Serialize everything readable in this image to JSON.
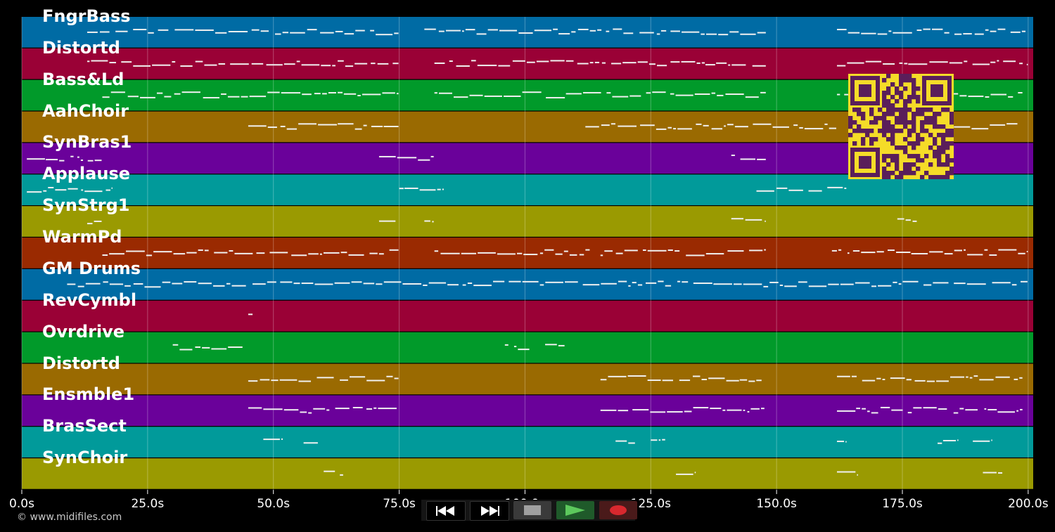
{
  "tracks": [
    {
      "name": "FngrBass",
      "color": "#006ba4"
    },
    {
      "name": "Distortd",
      "color": "#9a0136"
    },
    {
      "name": "Bass&Ld",
      "color": "#019a2a"
    },
    {
      "name": "AahChoir",
      "color": "#9a6a01"
    },
    {
      "name": "SynBras1",
      "color": "#6a019a"
    },
    {
      "name": "Applause",
      "color": "#019a9a"
    },
    {
      "name": "SynStrg1",
      "color": "#9a9a01"
    },
    {
      "name": "WarmPd",
      "color": "#9a2a01"
    },
    {
      "name": "GM Drums",
      "color": "#006ba4"
    },
    {
      "name": "RevCymbl",
      "color": "#9a0136"
    },
    {
      "name": "Ovrdrive",
      "color": "#019a2a"
    },
    {
      "name": "Distortd",
      "color": "#9a6a01"
    },
    {
      "name": "Ensmble1",
      "color": "#6a019a"
    },
    {
      "name": "BrasSect",
      "color": "#019a9a"
    },
    {
      "name": "SynChoir",
      "color": "#9a9a01"
    }
  ],
  "timeline": {
    "max_seconds": 201,
    "ticks": [
      "0.0s",
      "25.0s",
      "50.0s",
      "75.0s",
      "100.0s",
      "125.0s",
      "150.0s",
      "175.0s",
      "200.0s"
    ],
    "tick_values": [
      0,
      25,
      50,
      75,
      100,
      125,
      150,
      175,
      200
    ]
  },
  "copyright": "© www.midifiles.com",
  "transport": {
    "buttons": [
      {
        "name": "rewind-button",
        "icon": "rewind-icon",
        "color": "#000000"
      },
      {
        "name": "fast-forward-button",
        "icon": "fast-forward-icon",
        "color": "#000000"
      },
      {
        "name": "stop-button",
        "icon": "stop-icon",
        "color": "#3a3a3a"
      },
      {
        "name": "play-button",
        "icon": "play-icon",
        "color": "#1f5a2a"
      },
      {
        "name": "record-button",
        "icon": "record-icon",
        "color": "#4a1a1a"
      }
    ]
  },
  "qr_code": {
    "fg": "#5a1e5a",
    "bg": "#f5dc28"
  }
}
